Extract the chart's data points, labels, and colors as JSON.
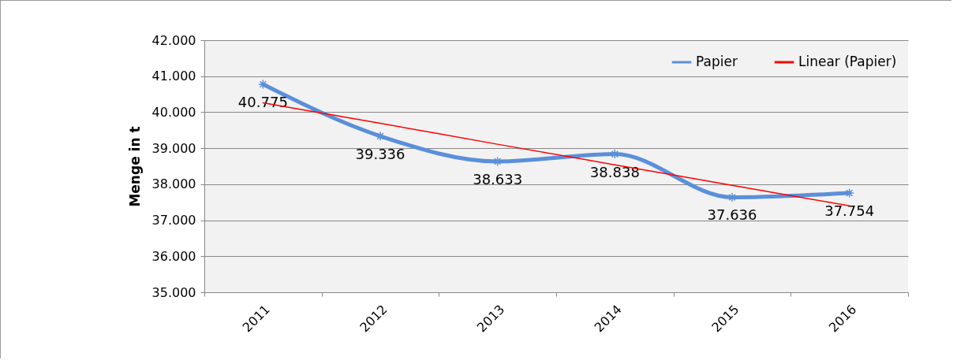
{
  "chart_data": {
    "type": "line",
    "ylabel": "Menge in t",
    "categories": [
      "2011",
      "2012",
      "2013",
      "2014",
      "2015",
      "2016"
    ],
    "series": [
      {
        "name": "Papier",
        "color": "#5b8fd9",
        "values": [
          40775,
          39336,
          38633,
          38838,
          37636,
          37754
        ],
        "value_labels": [
          "40.775",
          "39.336",
          "38.633",
          "38.838",
          "37.636",
          "37.754"
        ],
        "marker": "cross"
      },
      {
        "name": "Linear (Papier)",
        "color": "#ff0000",
        "values": [
          40260,
          39690,
          39110,
          38540,
          37970,
          37400
        ],
        "marker": "none"
      }
    ],
    "ylim": [
      35000,
      42000
    ],
    "yticks": [
      {
        "value": 35000,
        "label": "35.000"
      },
      {
        "value": 36000,
        "label": "36.000"
      },
      {
        "value": 37000,
        "label": "37.000"
      },
      {
        "value": 38000,
        "label": "38.000"
      },
      {
        "value": 39000,
        "label": "39.000"
      },
      {
        "value": 40000,
        "label": "40.000"
      },
      {
        "value": 41000,
        "label": "41.000"
      },
      {
        "value": 42000,
        "label": "42.000"
      }
    ],
    "grid": "y",
    "legend": "top right",
    "line_style": "solid"
  }
}
